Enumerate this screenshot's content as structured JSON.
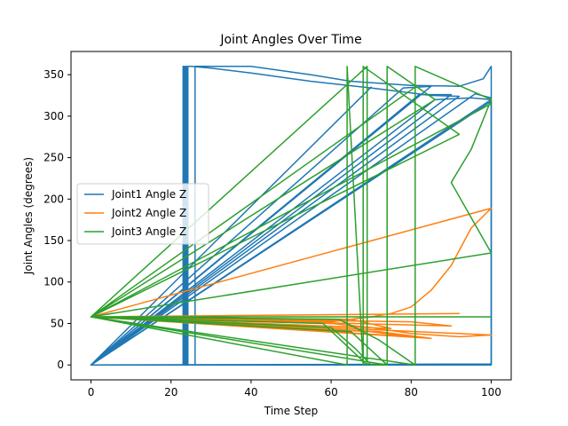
{
  "chart_data": {
    "type": "line",
    "title": "Joint Angles Over Time",
    "xlabel": "Time Step",
    "ylabel": "Joint Angles (degrees)",
    "xlim": [
      -5,
      105
    ],
    "ylim": [
      -18,
      378
    ],
    "xticks": [
      0,
      20,
      40,
      60,
      80,
      100
    ],
    "yticks": [
      0,
      50,
      100,
      150,
      200,
      250,
      300,
      350
    ],
    "grid": false,
    "legend_position": "center-left",
    "series": [
      {
        "name": "Joint1 Angle Z",
        "color": "#1f77b4",
        "segments": [
          [
            [
              0,
              0
            ],
            [
              23,
              0
            ],
            [
              23,
              360
            ],
            [
              23.3,
              360
            ],
            [
              23.3,
              0
            ],
            [
              23.6,
              0
            ],
            [
              23.6,
              360
            ],
            [
              23.9,
              360
            ],
            [
              23.9,
              0
            ],
            [
              24.2,
              0
            ],
            [
              24.2,
              360
            ],
            [
              25,
              360
            ],
            [
              30,
              358
            ],
            [
              40,
              352
            ],
            [
              55,
              342
            ],
            [
              70,
              334
            ],
            [
              85,
              325
            ],
            [
              92,
              324
            ],
            [
              0,
              0
            ],
            [
              100,
              1
            ],
            [
              100,
              318
            ],
            [
              0,
              0
            ],
            [
              100,
              0
            ]
          ],
          [
            [
              0,
              0
            ],
            [
              26,
              0
            ],
            [
              26,
              360
            ],
            [
              40,
              360
            ],
            [
              55,
              350
            ],
            [
              65,
              342
            ],
            [
              80,
              337
            ],
            [
              92,
              336
            ],
            [
              98,
              345
            ],
            [
              100,
              360
            ],
            [
              100,
              0
            ],
            [
              0,
              0
            ],
            [
              86,
              320
            ],
            [
              95,
              322
            ],
            [
              100,
              320
            ],
            [
              0,
              0
            ],
            [
              82,
              326
            ],
            [
              90,
              326
            ],
            [
              0,
              0
            ],
            [
              78,
              334
            ],
            [
              85,
              336
            ],
            [
              0,
              0
            ],
            [
              70,
              335
            ],
            [
              0,
              0
            ],
            [
              100,
              0
            ],
            [
              0,
              0
            ],
            [
              96,
              327
            ],
            [
              100,
              322
            ]
          ]
        ]
      },
      {
        "name": "Joint2 Angle Z",
        "color": "#ff7f0e",
        "segments": [
          [
            [
              0,
              58
            ],
            [
              100,
              189
            ],
            [
              95,
              165
            ],
            [
              90,
              120
            ],
            [
              85,
              90
            ],
            [
              80,
              70
            ],
            [
              75,
              62
            ],
            [
              70,
              58
            ],
            [
              65,
              55
            ],
            [
              60,
              52
            ],
            [
              0,
              58
            ],
            [
              92,
              62
            ],
            [
              0,
              58
            ],
            [
              100,
              36
            ],
            [
              92,
              34
            ],
            [
              80,
              38
            ],
            [
              70,
              45
            ],
            [
              60,
              50
            ],
            [
              0,
              58
            ],
            [
              80,
              34
            ],
            [
              70,
              40
            ],
            [
              0,
              58
            ],
            [
              75,
              44
            ],
            [
              65,
              55
            ],
            [
              0,
              58
            ],
            [
              85,
              32
            ],
            [
              72,
              40
            ],
            [
              0,
              58
            ],
            [
              90,
              47
            ],
            [
              80,
              52
            ],
            [
              0,
              58
            ],
            [
              100,
              36
            ]
          ]
        ]
      },
      {
        "name": "Joint3 Angle Z",
        "color": "#2ca02c",
        "segments": [
          [
            [
              0,
              58
            ],
            [
              100,
              58
            ],
            [
              0,
              58
            ],
            [
              100,
              135
            ],
            [
              0,
              58
            ],
            [
              100,
              315
            ],
            [
              0,
              58
            ],
            [
              92,
              278
            ],
            [
              68,
              360
            ],
            [
              68,
              0
            ],
            [
              64,
              360
            ],
            [
              64,
              0
            ],
            [
              0,
              58
            ],
            [
              60,
              45
            ],
            [
              66,
              20
            ],
            [
              70,
              0
            ],
            [
              74,
              0
            ],
            [
              74,
              360
            ],
            [
              86,
              320
            ],
            [
              0,
              58
            ],
            [
              81,
              335
            ],
            [
              81,
              0
            ],
            [
              81,
              360
            ],
            [
              100,
              320
            ],
            [
              95,
              260
            ],
            [
              90,
              220
            ],
            [
              100,
              135
            ],
            [
              0,
              58
            ],
            [
              69,
              360
            ],
            [
              69,
              0
            ],
            [
              58,
              50
            ],
            [
              0,
              58
            ],
            [
              74,
              0
            ],
            [
              65,
              40
            ],
            [
              0,
              58
            ],
            [
              62,
              55
            ],
            [
              72,
              30
            ],
            [
              81,
              0
            ],
            [
              0,
              58
            ]
          ]
        ]
      }
    ]
  }
}
